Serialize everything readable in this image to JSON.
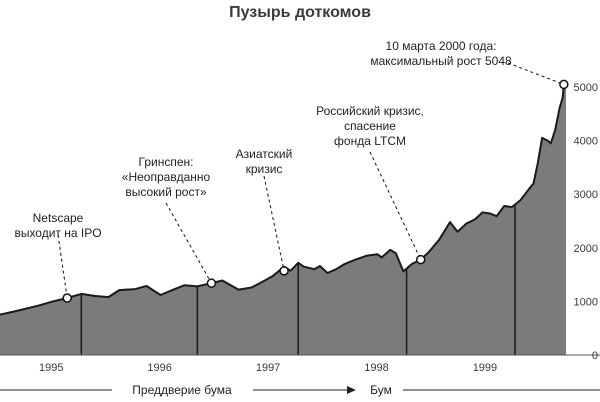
{
  "chart_data": {
    "type": "area",
    "title": "Пузырь доткомов",
    "ylim": [
      0,
      5400
    ],
    "yticks": [
      0,
      1000,
      2000,
      3000,
      4000,
      5000
    ],
    "year_labels": [
      "1995",
      "1996",
      "1997",
      "1998",
      "1999"
    ],
    "x_range": [
      1995.0,
      2000.22
    ],
    "series": [
      {
        "points": [
          [
            1995.0,
            751
          ],
          [
            1995.15,
            820
          ],
          [
            1995.35,
            920
          ],
          [
            1995.5,
            1005
          ],
          [
            1995.62,
            1063
          ],
          [
            1995.75,
            1140
          ],
          [
            1995.88,
            1100
          ],
          [
            1996.0,
            1080
          ],
          [
            1996.1,
            1210
          ],
          [
            1996.25,
            1230
          ],
          [
            1996.35,
            1290
          ],
          [
            1996.48,
            1120
          ],
          [
            1996.6,
            1220
          ],
          [
            1996.7,
            1300
          ],
          [
            1996.82,
            1280
          ],
          [
            1996.95,
            1340
          ],
          [
            1997.05,
            1390
          ],
          [
            1997.12,
            1310
          ],
          [
            1997.2,
            1220
          ],
          [
            1997.32,
            1260
          ],
          [
            1997.45,
            1400
          ],
          [
            1997.52,
            1480
          ],
          [
            1997.62,
            1650
          ],
          [
            1997.68,
            1570
          ],
          [
            1997.75,
            1720
          ],
          [
            1997.8,
            1650
          ],
          [
            1997.9,
            1600
          ],
          [
            1997.95,
            1660
          ],
          [
            1998.02,
            1530
          ],
          [
            1998.1,
            1600
          ],
          [
            1998.18,
            1700
          ],
          [
            1998.28,
            1780
          ],
          [
            1998.38,
            1850
          ],
          [
            1998.48,
            1880
          ],
          [
            1998.52,
            1820
          ],
          [
            1998.6,
            1960
          ],
          [
            1998.65,
            1900
          ],
          [
            1998.72,
            1560
          ],
          [
            1998.8,
            1700
          ],
          [
            1998.88,
            1780
          ],
          [
            1998.95,
            1910
          ],
          [
            1999.05,
            2150
          ],
          [
            1999.15,
            2480
          ],
          [
            1999.22,
            2300
          ],
          [
            1999.3,
            2450
          ],
          [
            1999.38,
            2530
          ],
          [
            1999.45,
            2660
          ],
          [
            1999.52,
            2640
          ],
          [
            1999.58,
            2590
          ],
          [
            1999.65,
            2780
          ],
          [
            1999.72,
            2760
          ],
          [
            1999.8,
            2890
          ],
          [
            1999.88,
            3100
          ],
          [
            1999.92,
            3200
          ],
          [
            1999.96,
            3580
          ],
          [
            2000.0,
            4050
          ],
          [
            2000.05,
            4000
          ],
          [
            2000.08,
            3950
          ],
          [
            2000.12,
            4200
          ],
          [
            2000.16,
            4600
          ],
          [
            2000.19,
            4800
          ],
          [
            2000.2,
            5048
          ],
          [
            2000.22,
            5048
          ]
        ]
      }
    ],
    "dividers_x": [
      1995.75,
      1996.82,
      1997.75,
      1998.75,
      1999.75
    ],
    "annotations": [
      {
        "lines": [
          "Netscape",
          "выходит на IPO"
        ],
        "x": 1995.62,
        "y": 1063
      },
      {
        "lines": [
          "Гринспен:",
          "«Неоправданно",
          "высокий рост»"
        ],
        "x": 1996.95,
        "y": 1340
      },
      {
        "lines": [
          "Азиатский",
          "кризис"
        ],
        "x": 1997.62,
        "y": 1570
      },
      {
        "lines": [
          "Российский кризис,",
          "спасение",
          "фонда LTCM"
        ],
        "x": 1998.88,
        "y": 1780
      },
      {
        "lines": [
          "10 марта 2000 года:",
          "максимальный рост 5048"
        ],
        "x": 2000.2,
        "y": 5048
      }
    ],
    "phases": [
      {
        "label": "Преддверие бума"
      },
      {
        "label": "Бум"
      }
    ]
  }
}
